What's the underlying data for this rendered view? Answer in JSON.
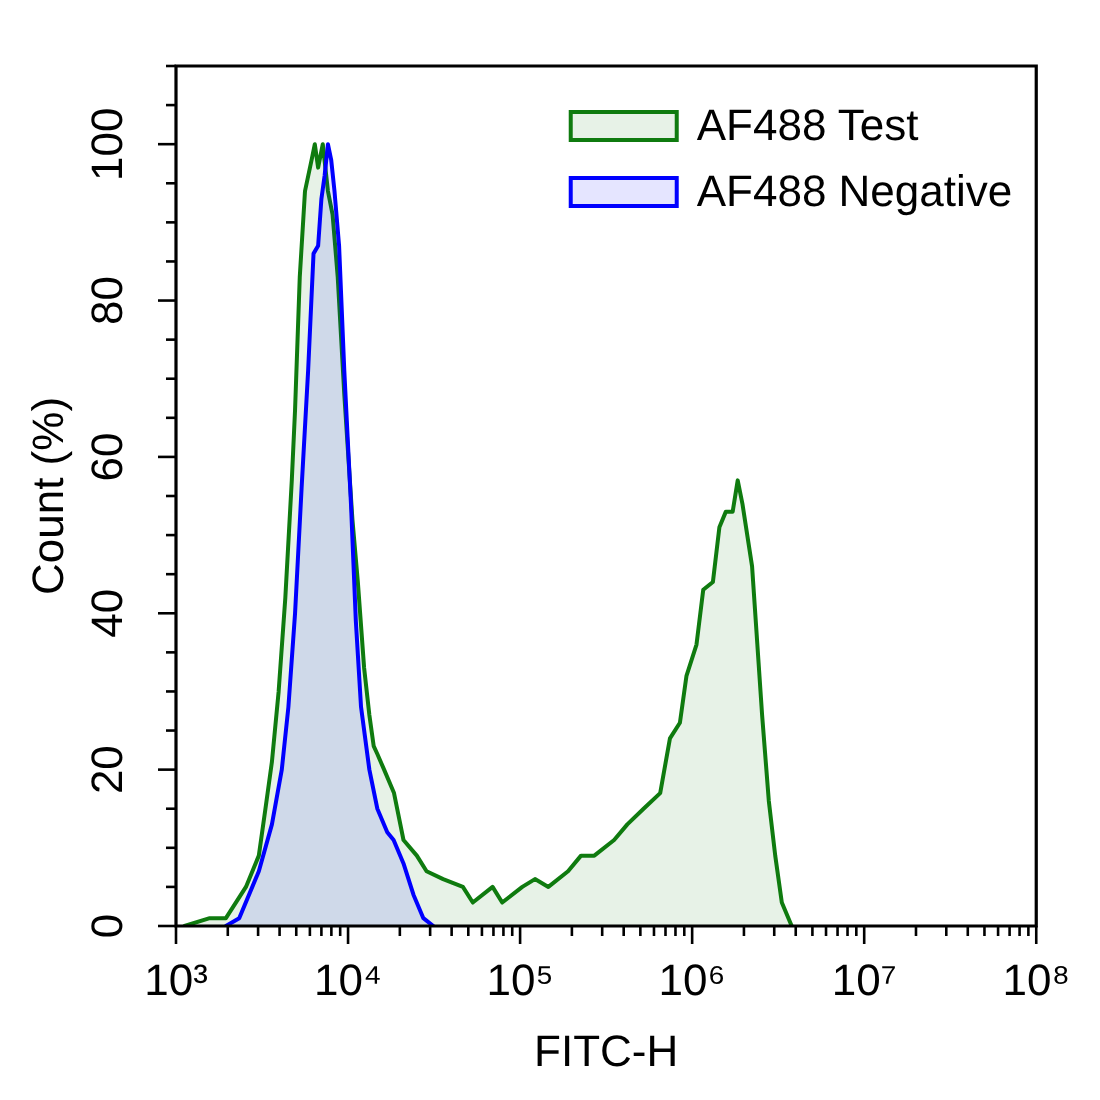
{
  "chart_data": {
    "type": "area",
    "xlabel": "FITC-H",
    "ylabel": "Count (%)",
    "log": "x",
    "legend": "top right",
    "xlim": [
      1000,
      100000000
    ],
    "xticks": [
      {
        "value": 1000,
        "label": "10³"
      },
      {
        "value": 2000,
        "label": null
      },
      {
        "value": 3000,
        "label": null
      },
      {
        "value": 4000,
        "label": null
      },
      {
        "value": 5000,
        "label": null
      },
      {
        "value": 6000,
        "label": null
      },
      {
        "value": 7000,
        "label": null
      },
      {
        "value": 8000,
        "label": null
      },
      {
        "value": 9000,
        "label": null
      },
      {
        "value": 10000,
        "label": "10⁴"
      },
      {
        "value": 20000,
        "label": null
      },
      {
        "value": 30000,
        "label": null
      },
      {
        "value": 40000,
        "label": null
      },
      {
        "value": 50000,
        "label": null
      },
      {
        "value": 60000,
        "label": null
      },
      {
        "value": 70000,
        "label": null
      },
      {
        "value": 80000,
        "label": null
      },
      {
        "value": 90000,
        "label": null
      },
      {
        "value": 100000,
        "label": "10⁵"
      },
      {
        "value": 200000,
        "label": null
      },
      {
        "value": 300000,
        "label": null
      },
      {
        "value": 400000,
        "label": null
      },
      {
        "value": 500000,
        "label": null
      },
      {
        "value": 600000,
        "label": null
      },
      {
        "value": 700000,
        "label": null
      },
      {
        "value": 800000,
        "label": null
      },
      {
        "value": 900000,
        "label": null
      },
      {
        "value": 1000000,
        "label": "10⁶"
      },
      {
        "value": 2000000,
        "label": null
      },
      {
        "value": 3000000,
        "label": null
      },
      {
        "value": 4000000,
        "label": null
      },
      {
        "value": 5000000,
        "label": null
      },
      {
        "value": 6000000,
        "label": null
      },
      {
        "value": 7000000,
        "label": null
      },
      {
        "value": 8000000,
        "label": null
      },
      {
        "value": 9000000,
        "label": null
      },
      {
        "value": 10000000,
        "label": "10⁷"
      },
      {
        "value": 20000000,
        "label": null
      },
      {
        "value": 30000000,
        "label": null
      },
      {
        "value": 40000000,
        "label": null
      },
      {
        "value": 50000000,
        "label": null
      },
      {
        "value": 60000000,
        "label": null
      },
      {
        "value": 70000000,
        "label": null
      },
      {
        "value": 80000000,
        "label": null
      },
      {
        "value": 90000000,
        "label": null
      },
      {
        "value": 100000000,
        "label": "10⁸"
      }
    ],
    "ylim": [
      0,
      110
    ],
    "yticks": [
      0,
      {
        "value": 5,
        "label": null
      },
      {
        "value": 10,
        "label": null
      },
      {
        "value": 15,
        "label": null
      },
      20,
      {
        "value": 25,
        "label": null
      },
      {
        "value": 30,
        "label": null
      },
      {
        "value": 35,
        "label": null
      },
      40,
      {
        "value": 45,
        "label": null
      },
      {
        "value": 50,
        "label": null
      },
      {
        "value": 55,
        "label": null
      },
      60,
      {
        "value": 65,
        "label": null
      },
      {
        "value": 70,
        "label": null
      },
      {
        "value": 75,
        "label": null
      },
      80,
      {
        "value": 85,
        "label": null
      },
      {
        "value": 90,
        "label": null
      },
      {
        "value": 95,
        "label": null
      },
      100,
      {
        "value": 105,
        "label": null
      },
      {
        "value": 110,
        "label": null
      }
    ],
    "series": [
      {
        "name": "AF488 Test",
        "color": "#0f7b0f",
        "x": [
          1120,
          1570,
          1950,
          2550,
          3030,
          3310,
          3610,
          3950,
          4320,
          4710,
          4920,
          5240,
          5620,
          6140,
          6410,
          6700,
          7130,
          7640,
          8130,
          8710,
          9510,
          10600,
          11400,
          12400,
          13300,
          14100,
          14800,
          16200,
          18500,
          21000,
          25100,
          28600,
          35700,
          46500,
          53100,
          69200,
          78700,
          103000,
          122000,
          146000,
          190000,
          226000,
          270000,
          352000,
          420000,
          522000,
          652000,
          743000,
          849000,
          927000,
          1060000,
          1160000,
          1320000,
          1440000,
          1570000,
          1720000,
          1840000,
          1960000,
          2230000,
          2550000,
          2790000,
          3040000,
          3320000,
          3790000
        ],
        "values": [
          0,
          1,
          1,
          5,
          9,
          15,
          21,
          30,
          42,
          57,
          66,
          83,
          94,
          98,
          100,
          97,
          100,
          94,
          91,
          83,
          68,
          52,
          44,
          33,
          27,
          23,
          22,
          20,
          17,
          11,
          9,
          7,
          6,
          5,
          3,
          5,
          3,
          5,
          6,
          5,
          7,
          9,
          9,
          11,
          13,
          15,
          17,
          24,
          26,
          32,
          36,
          43,
          44,
          51,
          53,
          53,
          57,
          54,
          46,
          27,
          16,
          9,
          3,
          0
        ]
      },
      {
        "name": "AF488 Negative",
        "color": "#0000ff",
        "x": [
          1950,
          2330,
          3030,
          3610,
          4120,
          4500,
          4920,
          5370,
          5860,
          6300,
          6700,
          7000,
          7310,
          7640,
          7980,
          8340,
          8870,
          9510,
          10400,
          11100,
          11900,
          13300,
          14800,
          16900,
          18400,
          21000,
          24000,
          27400,
          31300
        ],
        "values": [
          0,
          1,
          7,
          13,
          20,
          28,
          40,
          56,
          71,
          86,
          87,
          93,
          96,
          100,
          98,
          94,
          87,
          71,
          54,
          39,
          28,
          20,
          15,
          12,
          11,
          8,
          4,
          1,
          0
        ]
      }
    ]
  }
}
